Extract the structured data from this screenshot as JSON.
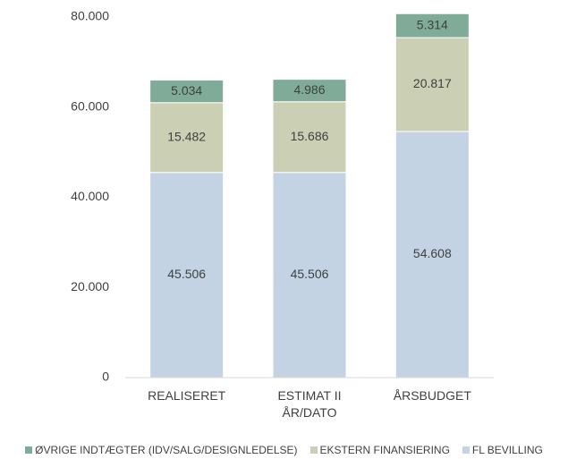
{
  "chart_data": {
    "type": "bar",
    "stacked": true,
    "categories": [
      "REALISERET",
      "ESTIMAT II ÅR/DATO",
      "ÅRSBUDGET"
    ],
    "series": [
      {
        "name": "FL BEVILLING",
        "color": "#c3d3e3",
        "values": [
          45506,
          45506,
          54608
        ],
        "value_labels": [
          "45.506",
          "45.506",
          "54.608"
        ]
      },
      {
        "name": "EKSTERN FINANSIERING",
        "color": "#cbcfb3",
        "values": [
          15482,
          15686,
          20817
        ],
        "value_labels": [
          "15.482",
          "15.686",
          "20.817"
        ]
      },
      {
        "name": "ØVRIGE INDTÆGTER (IDV/SALG/DESIGNLEDELSE)",
        "color": "#7fab98",
        "values": [
          5034,
          4986,
          5314
        ],
        "value_labels": [
          "5.034",
          "4.986",
          "5.314"
        ]
      }
    ],
    "ylim": [
      0,
      80000
    ],
    "yticks": [
      0,
      {
        "value": 20000,
        "label": "20.000"
      },
      {
        "value": 40000,
        "label": "40.000"
      },
      {
        "value": 60000,
        "label": "60.000"
      },
      {
        "value": 80000,
        "label": "80.000"
      }
    ],
    "grid": false,
    "legend": "bottom"
  }
}
